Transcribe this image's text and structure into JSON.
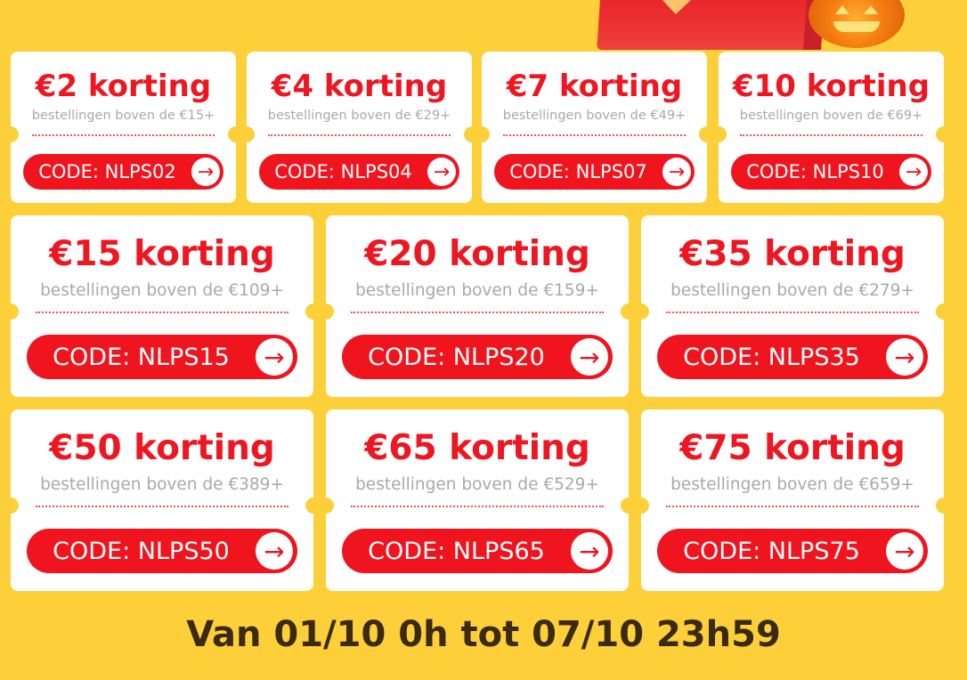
{
  "colors": {
    "background": "#fdd03a",
    "accent": "#f0141e",
    "subtext": "#a9a9ad",
    "footer": "#3b2a12"
  },
  "coupons": [
    {
      "title": "€2 korting",
      "condition": "bestellingen boven de €15+",
      "code": "CODE: NLPS02"
    },
    {
      "title": "€4 korting",
      "condition": "bestellingen boven de €29+",
      "code": "CODE: NLPS04"
    },
    {
      "title": "€7 korting",
      "condition": "bestellingen boven de €49+",
      "code": "CODE: NLPS07"
    },
    {
      "title": "€10 korting",
      "condition": "bestellingen boven de €69+",
      "code": "CODE: NLPS10"
    },
    {
      "title": "€15 korting",
      "condition": "bestellingen boven de €109+",
      "code": "CODE: NLPS15"
    },
    {
      "title": "€20 korting",
      "condition": "bestellingen boven de €159+",
      "code": "CODE: NLPS20"
    },
    {
      "title": "€35 korting",
      "condition": "bestellingen boven de €279+",
      "code": "CODE: NLPS35"
    },
    {
      "title": "€50 korting",
      "condition": "bestellingen boven de €389+",
      "code": "CODE: NLPS50"
    },
    {
      "title": "€65 korting",
      "condition": "bestellingen boven de €529+",
      "code": "CODE: NLPS65"
    },
    {
      "title": "€75 korting",
      "condition": "bestellingen boven de €659+",
      "code": "CODE: NLPS75"
    }
  ],
  "button_icon": "arrow-right-icon",
  "footer": {
    "period": "Van 01/10 0h tot 07/10 23h59"
  }
}
